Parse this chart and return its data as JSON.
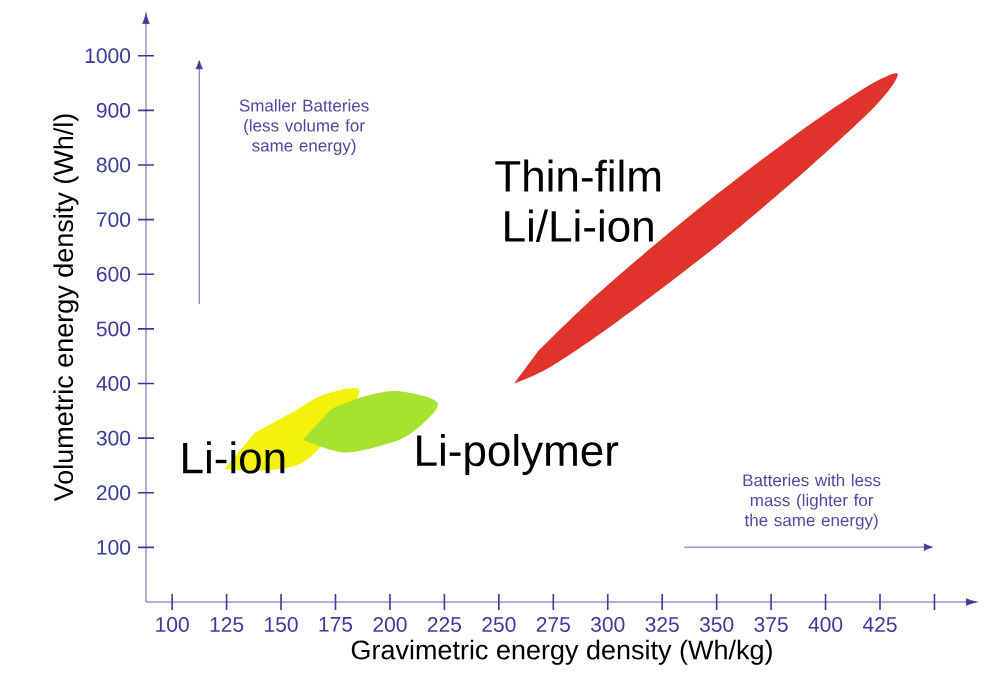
{
  "chart_data": {
    "type": "area",
    "xlabel": "Gravimetric energy density (Wh/kg)",
    "ylabel": "Volumetric energy density (Wh/l)",
    "xlim": [
      88,
      470
    ],
    "ylim": [
      0,
      1080
    ],
    "xticks": [
      100,
      125,
      150,
      175,
      200,
      225,
      250,
      275,
      300,
      325,
      350,
      375,
      400,
      425,
      {
        "value": 450,
        "label": null
      }
    ],
    "yticks": [
      100,
      200,
      300,
      400,
      500,
      600,
      700,
      800,
      900,
      1000
    ],
    "grid": false,
    "series": [
      {
        "name": "Li-ion",
        "color": "#f2f20a",
        "x": [
          124,
          146,
          164,
          186,
          170,
          155,
          138
        ],
        "values": [
          243,
          242,
          267,
          384,
          380,
          347,
          310
        ]
      },
      {
        "name": "Li-polymer",
        "color": "#a6e22e",
        "x": [
          160,
          178,
          194,
          209,
          222,
          204,
          188,
          173
        ],
        "values": [
          297,
          274,
          284,
          307,
          363,
          386,
          376,
          353
        ]
      },
      {
        "name": "Thin-film Li/Li-ion",
        "color": "#e0332b",
        "x": [
          257,
          274,
          306,
          351,
          394,
          424,
          433,
          418,
          384,
          339,
          296,
          268
        ],
        "values": [
          400,
          431,
          518,
          655,
          801,
          913,
          967,
          941,
          849,
          711,
          566,
          459
        ]
      }
    ],
    "annotations": [
      "Smaller Batteries (less volume for same energy)",
      "Batteries with less mass (lighter for the same energy)"
    ]
  }
}
